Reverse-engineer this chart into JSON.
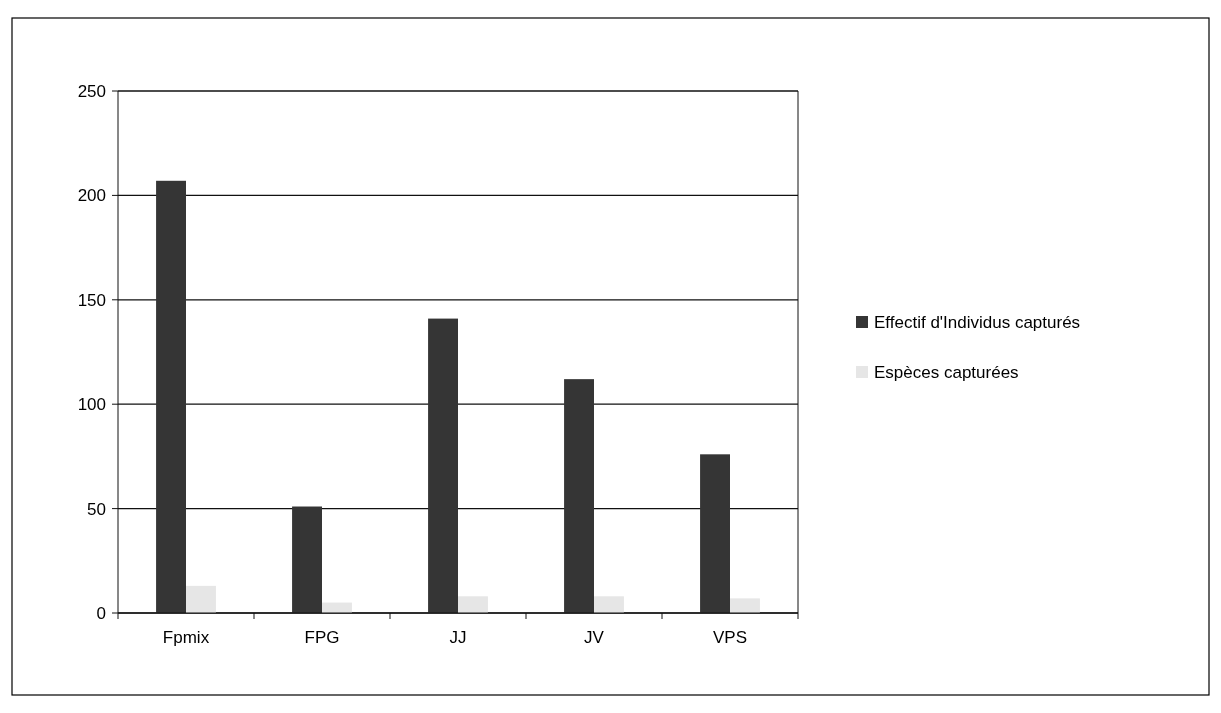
{
  "chart_data": {
    "type": "bar",
    "categories": [
      "Fpmix",
      "FPG",
      "JJ",
      "JV",
      "VPS"
    ],
    "series": [
      {
        "name": "Effectif d'Individus capturés",
        "color": "#353535",
        "values": [
          207,
          51,
          141,
          112,
          76
        ]
      },
      {
        "name": "Espèces capturées",
        "color": "#e6e6e6",
        "values": [
          13,
          5,
          8,
          8,
          7
        ]
      }
    ],
    "ylim": [
      0,
      250
    ],
    "yticks": [
      0,
      50,
      100,
      150,
      200,
      250
    ],
    "grid": "y",
    "legend": "right"
  }
}
